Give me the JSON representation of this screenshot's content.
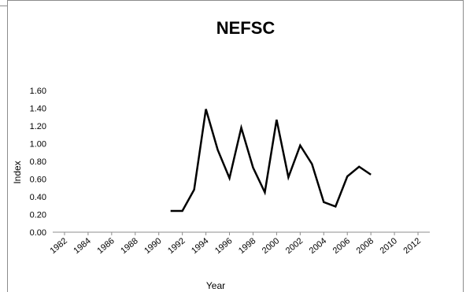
{
  "chart_data": {
    "type": "line",
    "title": "NEFSC",
    "xlabel": "Year",
    "ylabel": "Index",
    "ylim": [
      0,
      1.6
    ],
    "yticks": [
      "0.00",
      "0.20",
      "0.40",
      "0.60",
      "0.80",
      "1.00",
      "1.20",
      "1.40",
      "1.60"
    ],
    "xticks": [
      "1982",
      "1984",
      "1986",
      "1988",
      "1990",
      "1992",
      "1994",
      "1996",
      "1998",
      "2000",
      "2002",
      "2004",
      "2006",
      "2008",
      "2010",
      "2012"
    ],
    "xlim": [
      1981,
      2013
    ],
    "grid": false,
    "series": [
      {
        "color": "#000000",
        "x": [
          1991,
          1992,
          1993,
          1994,
          1995,
          1996,
          1997,
          1998,
          1999,
          2000,
          2001,
          2002,
          2003,
          2004,
          2005,
          2006,
          2007,
          2008
        ],
        "values": [
          0.24,
          0.24,
          0.48,
          1.39,
          0.93,
          0.61,
          1.18,
          0.73,
          0.45,
          1.27,
          0.62,
          0.98,
          0.77,
          0.34,
          0.29,
          0.63,
          0.74,
          0.65
        ]
      }
    ]
  }
}
